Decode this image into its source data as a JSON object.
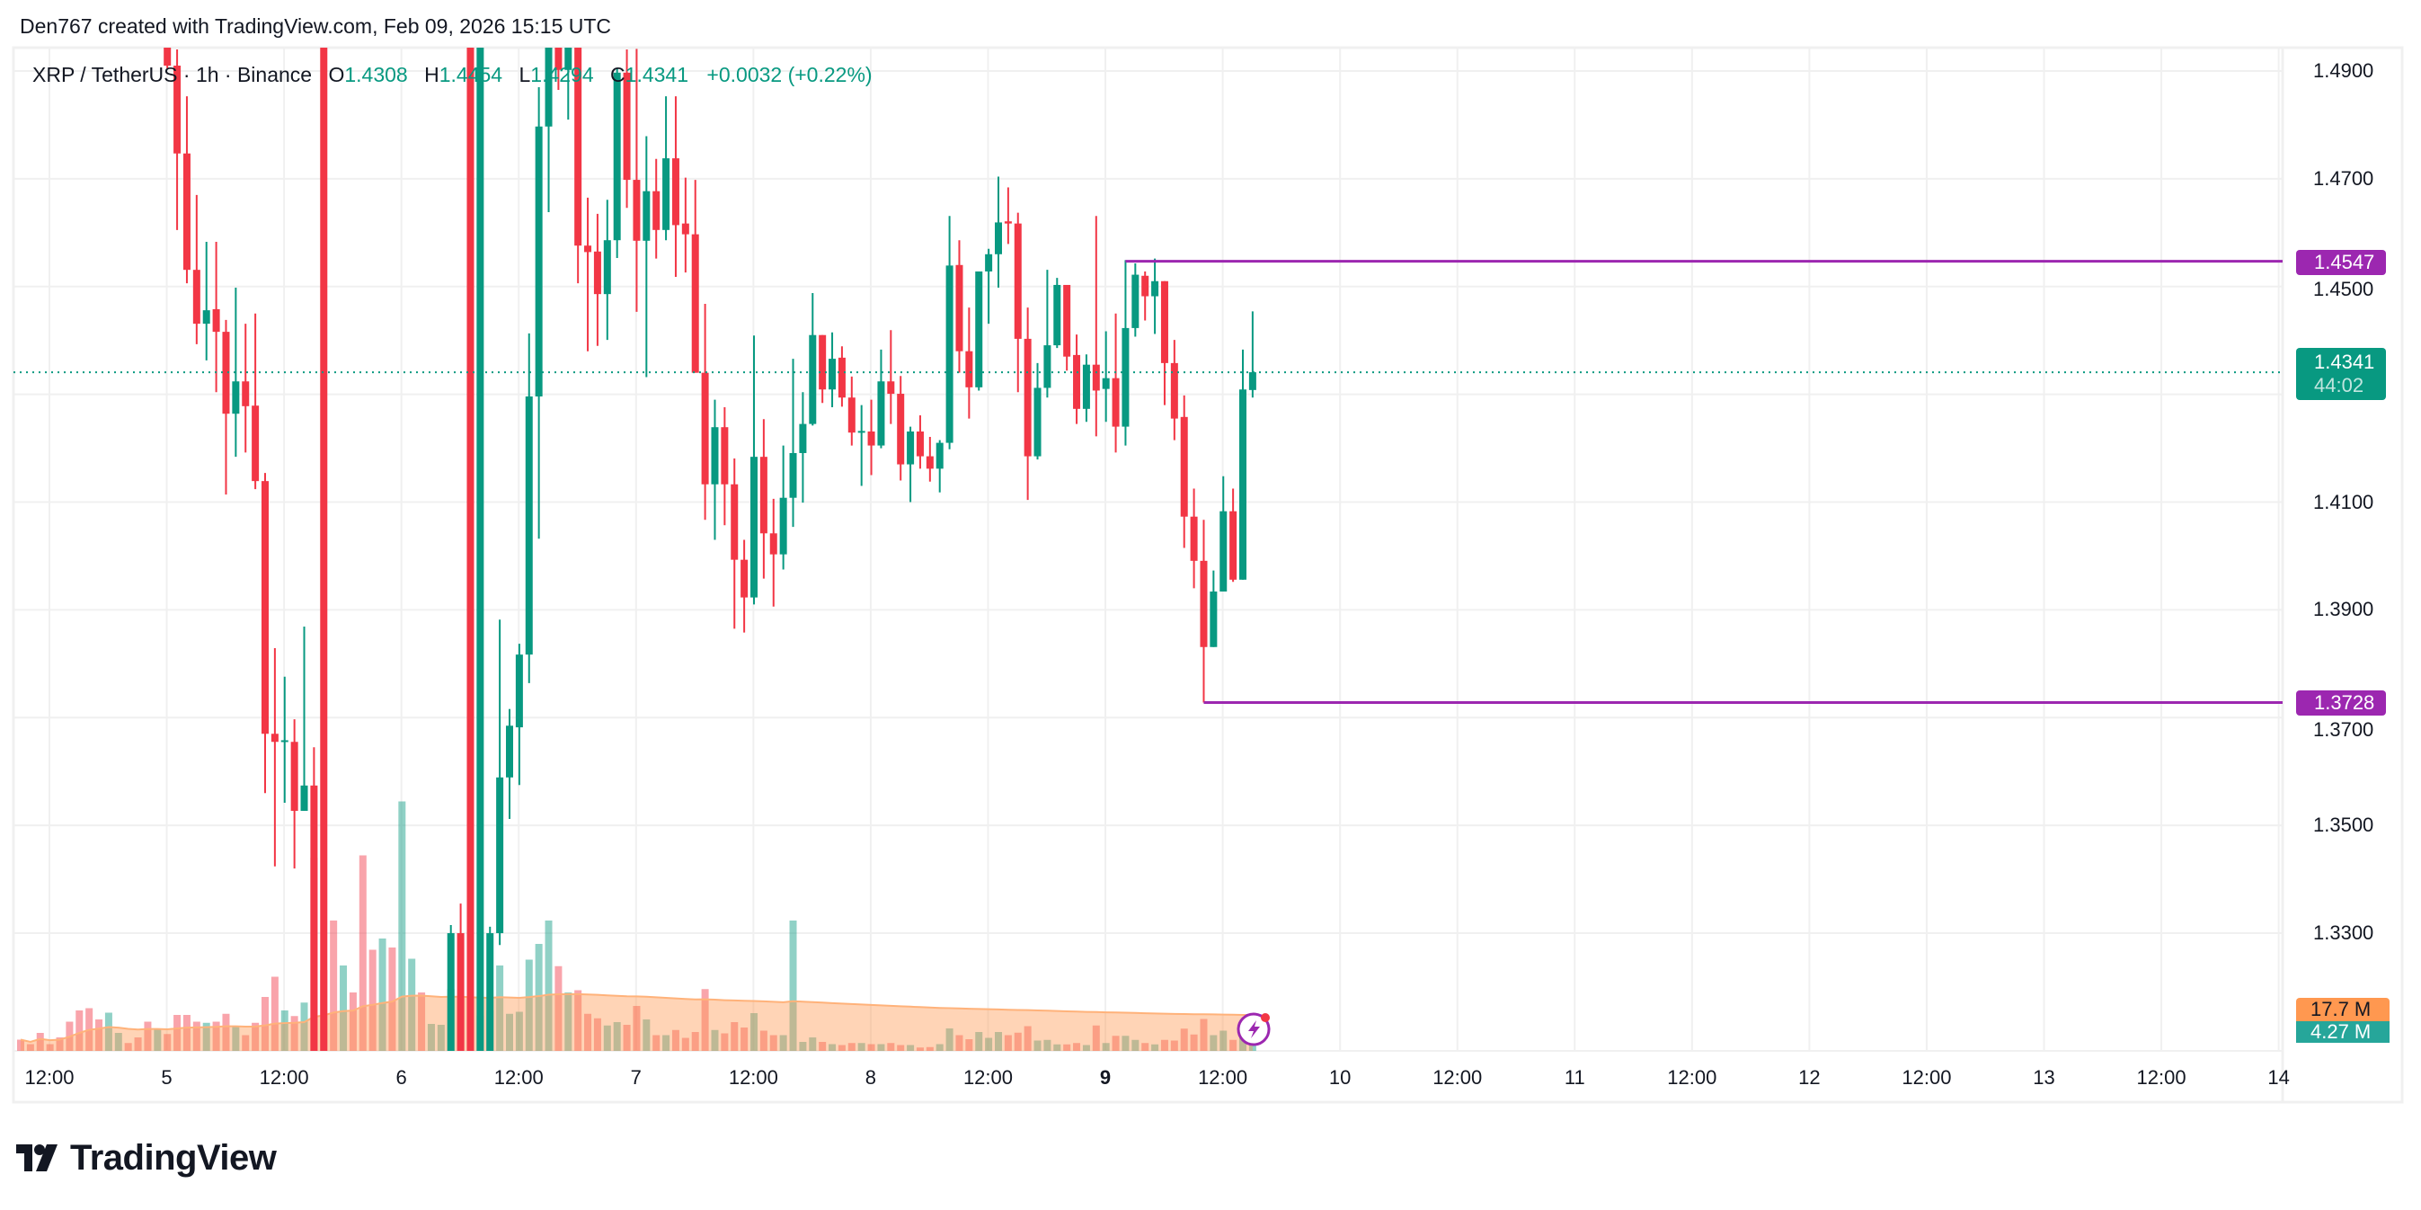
{
  "header": {
    "title": "Den767 created with TradingView.com, Feb 09, 2026 15:15 UTC"
  },
  "legend": {
    "symbol": "XRP / TetherUS · 1h · Binance",
    "o_label": "O",
    "o": "1.4308",
    "h_label": "H",
    "h": "1.4454",
    "l_label": "L",
    "l": "1.4294",
    "c_label": "C",
    "c": "1.4341",
    "change": "+0.0032 (+0.22%)"
  },
  "price_axis": {
    "current_price": "1.4341",
    "countdown": "44:02",
    "level_high": "1.4547",
    "level_low": "1.3728",
    "volume_ma_label": "17.7 M",
    "volume_label": "4.27 M"
  },
  "logo": {
    "text": "TradingView"
  },
  "colors": {
    "up": "#089981",
    "down": "#f23645",
    "level": "#9c27b0",
    "volume_ma": "#ff9850",
    "volume_tag": "#26a69a",
    "grid": "#f0f0f0"
  },
  "chart_data": {
    "type": "candlestick",
    "title": "XRP / TetherUS · 1h · Binance",
    "ylim": [
      1.3083,
      1.4942
    ],
    "y_ticks": [
      "1.4900",
      "1.4700",
      "1.4500",
      "1.4100",
      "1.3900",
      "1.3700",
      "1.3500",
      "1.3300"
    ],
    "x_ticks": [
      "12:00",
      "5",
      "12:00",
      "6",
      "12:00",
      "7",
      "12:00",
      "8",
      "12:00",
      "9",
      "12:00",
      "10",
      "12:00",
      "11",
      "12:00",
      "12",
      "12:00",
      "13",
      "12:00",
      "14"
    ],
    "x_tick_bold": "9",
    "grid": true,
    "current_price": 1.4341,
    "horizontal_levels": [
      {
        "price": 1.4547,
        "from": "2026-02-09 02:00"
      },
      {
        "price": 1.3728,
        "from": "2026-02-09 10:00"
      }
    ],
    "columns": [
      "time",
      "open",
      "high",
      "low",
      "close",
      "volume_M",
      "up"
    ],
    "candles": [
      [
        "2026-02-04 09:00",
        null,
        null,
        null,
        null,
        5,
        0
      ],
      [
        "2026-02-04 10:00",
        null,
        null,
        null,
        null,
        3,
        0
      ],
      [
        "2026-02-04 11:00",
        null,
        null,
        null,
        null,
        8,
        0
      ],
      [
        "2026-02-04 12:00",
        null,
        null,
        null,
        null,
        3,
        0
      ],
      [
        "2026-02-04 13:00",
        null,
        null,
        null,
        null,
        6,
        0
      ],
      [
        "2026-02-04 14:00",
        null,
        null,
        null,
        null,
        13,
        0
      ],
      [
        "2026-02-04 15:00",
        null,
        null,
        null,
        null,
        18,
        0
      ],
      [
        "2026-02-04 16:00",
        null,
        null,
        null,
        null,
        19,
        0
      ],
      [
        "2026-02-04 17:00",
        null,
        null,
        null,
        null,
        14,
        0
      ],
      [
        "2026-02-04 18:00",
        null,
        null,
        null,
        null,
        17,
        1
      ],
      [
        "2026-02-04 19:00",
        null,
        null,
        null,
        null,
        8,
        1
      ],
      [
        "2026-02-04 20:00",
        null,
        null,
        null,
        null,
        3.5,
        0
      ],
      [
        "2026-02-04 21:00",
        null,
        null,
        null,
        null,
        6,
        0
      ],
      [
        "2026-02-04 22:00",
        null,
        null,
        null,
        null,
        13,
        0
      ],
      [
        "2026-02-04 23:00",
        null,
        null,
        null,
        null,
        10,
        1
      ],
      [
        "2026-02-05 00:00",
        null,
        null,
        1.4905,
        1.491,
        7.5,
        0
      ],
      [
        "2026-02-05 01:00",
        1.491,
        1.494,
        1.4605,
        1.4747,
        16,
        0
      ],
      [
        "2026-02-05 02:00",
        1.4747,
        1.4853,
        1.4506,
        1.4531,
        16,
        0
      ],
      [
        "2026-02-05 03:00",
        1.4531,
        1.467,
        1.4393,
        1.4431,
        13,
        0
      ],
      [
        "2026-02-05 04:00",
        1.4431,
        1.4583,
        1.4363,
        1.4456,
        12.5,
        1
      ],
      [
        "2026-02-05 05:00",
        1.4458,
        1.4583,
        1.4304,
        1.4416,
        13,
        0
      ],
      [
        "2026-02-05 06:00",
        1.4416,
        1.4438,
        1.4114,
        1.4264,
        16.5,
        0
      ],
      [
        "2026-02-05 07:00",
        1.4264,
        1.4498,
        1.4184,
        1.4324,
        11,
        1
      ],
      [
        "2026-02-05 08:00",
        1.4324,
        1.4431,
        1.4192,
        1.4278,
        7,
        0
      ],
      [
        "2026-02-05 09:00",
        1.4279,
        1.445,
        1.4124,
        1.4139,
        12.5,
        0
      ],
      [
        "2026-02-05 10:00",
        1.4139,
        1.4154,
        1.356,
        1.367,
        24,
        0
      ],
      [
        "2026-02-05 11:00",
        1.367,
        1.3829,
        1.3424,
        1.3655,
        33,
        0
      ],
      [
        "2026-02-05 12:00",
        1.3655,
        1.3776,
        1.3542,
        1.3658,
        18,
        1
      ],
      [
        "2026-02-05 13:00",
        1.3655,
        1.3697,
        1.342,
        1.3527,
        15.5,
        0
      ],
      [
        "2026-02-05 14:00",
        1.3527,
        1.3869,
        1.3527,
        1.3574,
        21.5,
        1
      ],
      [
        "2026-02-05 15:00",
        1.3574,
        1.3645,
        null,
        null,
        86,
        0
      ],
      [
        "2026-02-05 16:00",
        null,
        1.3122,
        null,
        null,
        36,
        0
      ],
      [
        "2026-02-05 17:00",
        null,
        null,
        null,
        null,
        58,
        0
      ],
      [
        "2026-02-05 18:00",
        null,
        null,
        null,
        null,
        38,
        1
      ],
      [
        "2026-02-05 19:00",
        null,
        null,
        null,
        null,
        26,
        0
      ],
      [
        "2026-02-05 20:00",
        null,
        null,
        null,
        null,
        87,
        0
      ],
      [
        "2026-02-05 21:00",
        null,
        null,
        null,
        null,
        45,
        0
      ],
      [
        "2026-02-05 22:00",
        null,
        null,
        null,
        null,
        50,
        1
      ],
      [
        "2026-02-05 23:00",
        null,
        null,
        null,
        null,
        46,
        0
      ],
      [
        "2026-02-06 00:00",
        null,
        null,
        null,
        null,
        111,
        1
      ],
      [
        "2026-02-06 01:00",
        null,
        null,
        null,
        null,
        41,
        1
      ],
      [
        "2026-02-06 02:00",
        null,
        null,
        null,
        null,
        26,
        0
      ],
      [
        "2026-02-06 03:00",
        null,
        null,
        null,
        null,
        12,
        1
      ],
      [
        "2026-02-06 04:00",
        null,
        null,
        null,
        null,
        11.6,
        1
      ],
      [
        "2026-02-06 05:00",
        null,
        1.3315,
        null,
        1.33,
        27.5,
        1
      ],
      [
        "2026-02-06 06:00",
        1.33,
        1.3355,
        null,
        null,
        24,
        0
      ],
      [
        "2026-02-06 07:00",
        null,
        1.3145,
        null,
        null,
        14,
        0
      ],
      [
        "2026-02-06 08:00",
        null,
        1.31,
        null,
        null,
        15.7,
        1
      ],
      [
        "2026-02-06 09:00",
        null,
        1.3312,
        null,
        1.33,
        18,
        1
      ],
      [
        "2026-02-06 10:00",
        1.33,
        1.3882,
        1.3278,
        1.3589,
        38,
        1
      ],
      [
        "2026-02-06 11:00",
        1.3589,
        1.3716,
        1.3512,
        1.3685,
        16.5,
        1
      ],
      [
        "2026-02-06 12:00",
        1.3682,
        1.3837,
        1.3575,
        1.3817,
        17.4,
        1
      ],
      [
        "2026-02-06 13:00",
        1.3817,
        1.4413,
        1.3764,
        1.4296,
        40.6,
        1
      ],
      [
        "2026-02-06 14:00",
        1.4296,
        1.487,
        1.4032,
        1.4797,
        47.6,
        1
      ],
      [
        "2026-02-06 15:00",
        1.4797,
        null,
        1.4638,
        null,
        58,
        1
      ],
      [
        "2026-02-06 16:00",
        null,
        null,
        1.4865,
        1.4902,
        37.7,
        0
      ],
      [
        "2026-02-06 17:00",
        1.4902,
        null,
        1.481,
        null,
        26,
        1
      ],
      [
        "2026-02-06 18:00",
        null,
        null,
        1.4506,
        1.4576,
        27,
        0
      ],
      [
        "2026-02-06 19:00",
        1.4576,
        1.4665,
        1.438,
        1.4564,
        16.5,
        0
      ],
      [
        "2026-02-06 20:00",
        1.4565,
        1.4635,
        1.439,
        1.4486,
        14.5,
        0
      ],
      [
        "2026-02-06 21:00",
        1.4486,
        1.4661,
        1.4401,
        1.4586,
        11.3,
        1
      ],
      [
        "2026-02-06 22:00",
        1.4586,
        1.4905,
        1.4553,
        1.4897,
        12.8,
        1
      ],
      [
        "2026-02-06 23:00",
        1.4897,
        1.494,
        1.4646,
        1.4698,
        11.6,
        0
      ],
      [
        "2026-02-07 00:00",
        1.4698,
        1.4941,
        1.4453,
        1.4585,
        20,
        0
      ],
      [
        "2026-02-07 01:00",
        1.4585,
        1.4779,
        1.4332,
        1.4677,
        14,
        1
      ],
      [
        "2026-02-07 02:00",
        1.4677,
        1.4737,
        1.4552,
        1.4605,
        7,
        0
      ],
      [
        "2026-02-07 03:00",
        1.4605,
        1.4853,
        1.4586,
        1.4738,
        7,
        1
      ],
      [
        "2026-02-07 04:00",
        1.4738,
        1.4853,
        1.4518,
        1.4614,
        9.3,
        0
      ],
      [
        "2026-02-07 05:00",
        1.4617,
        1.4702,
        1.4526,
        1.4597,
        5.8,
        0
      ],
      [
        "2026-02-07 06:00",
        1.4597,
        1.4698,
        1.434,
        1.434,
        8.4,
        0
      ],
      [
        "2026-02-07 07:00",
        1.434,
        1.4468,
        1.4067,
        1.4133,
        27.5,
        0
      ],
      [
        "2026-02-07 08:00",
        1.4133,
        1.429,
        1.403,
        1.4239,
        9.3,
        1
      ],
      [
        "2026-02-07 09:00",
        1.4239,
        1.4276,
        1.4057,
        1.4133,
        7.8,
        0
      ],
      [
        "2026-02-07 10:00",
        1.4133,
        1.4181,
        1.3865,
        1.3993,
        12.8,
        0
      ],
      [
        "2026-02-07 11:00",
        1.3993,
        1.403,
        1.3858,
        1.3923,
        10.4,
        0
      ],
      [
        "2026-02-07 12:00",
        1.3923,
        1.4409,
        1.391,
        1.4184,
        16.8,
        1
      ],
      [
        "2026-02-07 13:00",
        1.4184,
        1.4254,
        1.3958,
        1.4042,
        9,
        0
      ],
      [
        "2026-02-07 14:00",
        1.4042,
        1.4106,
        1.3906,
        1.4003,
        7,
        0
      ],
      [
        "2026-02-07 15:00",
        1.4003,
        1.4205,
        1.3975,
        1.4108,
        7,
        1
      ],
      [
        "2026-02-07 16:00",
        1.4108,
        1.4366,
        1.4054,
        1.4191,
        58,
        1
      ],
      [
        "2026-02-07 17:00",
        1.4191,
        1.4304,
        1.4099,
        1.4245,
        4,
        1
      ],
      [
        "2026-02-07 18:00",
        1.4245,
        1.4488,
        1.4242,
        1.441,
        6,
        1
      ],
      [
        "2026-02-07 19:00",
        1.441,
        1.441,
        1.4284,
        1.4309,
        4,
        0
      ],
      [
        "2026-02-07 20:00",
        1.4309,
        1.4415,
        1.4276,
        1.4366,
        3,
        1
      ],
      [
        "2026-02-07 21:00",
        1.4368,
        1.4389,
        1.4277,
        1.4294,
        2.6,
        0
      ],
      [
        "2026-02-07 22:00",
        1.4294,
        1.4333,
        1.4205,
        1.4229,
        3.5,
        0
      ],
      [
        "2026-02-07 23:00",
        1.4231,
        1.428,
        1.413,
        1.4232,
        3.5,
        1
      ],
      [
        "2026-02-08 00:00",
        1.4231,
        1.429,
        1.415,
        1.4205,
        3,
        0
      ],
      [
        "2026-02-08 01:00",
        1.4205,
        1.4383,
        1.42,
        1.4324,
        3,
        1
      ],
      [
        "2026-02-08 02:00",
        1.4324,
        1.4419,
        1.4245,
        1.4301,
        3.5,
        0
      ],
      [
        "2026-02-08 03:00",
        1.4301,
        1.4334,
        1.414,
        1.417,
        2.6,
        0
      ],
      [
        "2026-02-08 04:00",
        1.417,
        1.424,
        1.41,
        1.4231,
        2.6,
        1
      ],
      [
        "2026-02-08 05:00",
        1.4231,
        1.4261,
        1.4162,
        1.4185,
        1.5,
        0
      ],
      [
        "2026-02-08 06:00",
        1.4185,
        1.4221,
        1.4138,
        1.4162,
        1.7,
        0
      ],
      [
        "2026-02-08 07:00",
        1.4162,
        1.4215,
        1.4118,
        1.421,
        3,
        1
      ],
      [
        "2026-02-08 08:00",
        1.421,
        1.4631,
        1.4198,
        1.4539,
        10,
        1
      ],
      [
        "2026-02-08 09:00",
        1.454,
        1.4586,
        1.434,
        1.438,
        7,
        0
      ],
      [
        "2026-02-08 10:00",
        1.438,
        1.4461,
        1.4255,
        1.4313,
        5.2,
        0
      ],
      [
        "2026-02-08 11:00",
        1.4313,
        1.4528,
        1.4307,
        1.4528,
        8.4,
        1
      ],
      [
        "2026-02-08 12:00",
        1.4528,
        1.457,
        1.4431,
        1.456,
        5.8,
        1
      ],
      [
        "2026-02-08 13:00",
        1.456,
        1.4704,
        1.4498,
        1.4619,
        8.4,
        1
      ],
      [
        "2026-02-08 14:00",
        1.4621,
        1.4684,
        1.4579,
        1.4617,
        7,
        0
      ],
      [
        "2026-02-08 15:00",
        1.4617,
        1.4637,
        1.4304,
        1.4403,
        8.1,
        0
      ],
      [
        "2026-02-08 16:00",
        1.4403,
        1.4461,
        1.4104,
        1.4185,
        11,
        0
      ],
      [
        "2026-02-08 17:00",
        1.4185,
        1.4358,
        1.4179,
        1.4312,
        4.6,
        1
      ],
      [
        "2026-02-08 18:00",
        1.4312,
        1.4531,
        1.4294,
        1.4391,
        4.9,
        1
      ],
      [
        "2026-02-08 19:00",
        1.4391,
        1.4516,
        1.4386,
        1.4503,
        2.9,
        1
      ],
      [
        "2026-02-08 20:00",
        1.4503,
        1.4503,
        1.4344,
        1.437,
        2.9,
        0
      ],
      [
        "2026-02-08 21:00",
        1.4373,
        1.4411,
        1.4245,
        1.4273,
        3.5,
        0
      ],
      [
        "2026-02-08 22:00",
        1.4273,
        1.4374,
        1.4249,
        1.4355,
        2.6,
        1
      ],
      [
        "2026-02-08 23:00",
        1.4355,
        1.4631,
        1.4222,
        1.4307,
        11.3,
        0
      ],
      [
        "2026-02-09 00:00",
        1.431,
        1.4417,
        1.4249,
        1.433,
        3.5,
        1
      ],
      [
        "2026-02-09 01:00",
        1.433,
        1.445,
        1.4192,
        1.424,
        6.7,
        0
      ],
      [
        "2026-02-09 02:00",
        1.424,
        1.4549,
        1.4205,
        1.4423,
        6.7,
        1
      ],
      [
        "2026-02-09 03:00",
        1.4423,
        1.4543,
        1.4407,
        1.4522,
        4.9,
        1
      ],
      [
        "2026-02-09 04:00",
        1.452,
        1.4528,
        1.4437,
        1.4482,
        3.5,
        0
      ],
      [
        "2026-02-09 05:00",
        1.4482,
        1.4552,
        1.4412,
        1.451,
        2.9,
        1
      ],
      [
        "2026-02-09 06:00",
        1.451,
        1.451,
        1.428,
        1.4358,
        4.9,
        0
      ],
      [
        "2026-02-09 07:00",
        1.4358,
        1.4401,
        1.4215,
        1.4255,
        4.6,
        0
      ],
      [
        "2026-02-09 08:00",
        1.4258,
        1.4298,
        1.4015,
        1.4073,
        9.9,
        0
      ],
      [
        "2026-02-09 09:00",
        1.4073,
        1.4125,
        1.394,
        1.3991,
        7.3,
        0
      ],
      [
        "2026-02-09 10:00",
        1.3991,
        1.4067,
        1.3728,
        1.3831,
        14.2,
        0
      ],
      [
        "2026-02-09 11:00",
        1.3831,
        1.3973,
        1.3831,
        1.3934,
        7,
        1
      ],
      [
        "2026-02-09 12:00",
        1.3934,
        1.4148,
        1.3934,
        1.4083,
        9,
        1
      ],
      [
        "2026-02-09 13:00",
        1.4083,
        1.4125,
        1.3952,
        1.3956,
        4.9,
        0
      ],
      [
        "2026-02-09 14:00",
        1.3956,
        1.4383,
        1.3956,
        1.4309,
        8,
        1
      ],
      [
        "2026-02-09 15:00",
        1.4308,
        1.4454,
        1.4294,
        1.4341,
        4.27,
        1
      ]
    ]
  }
}
